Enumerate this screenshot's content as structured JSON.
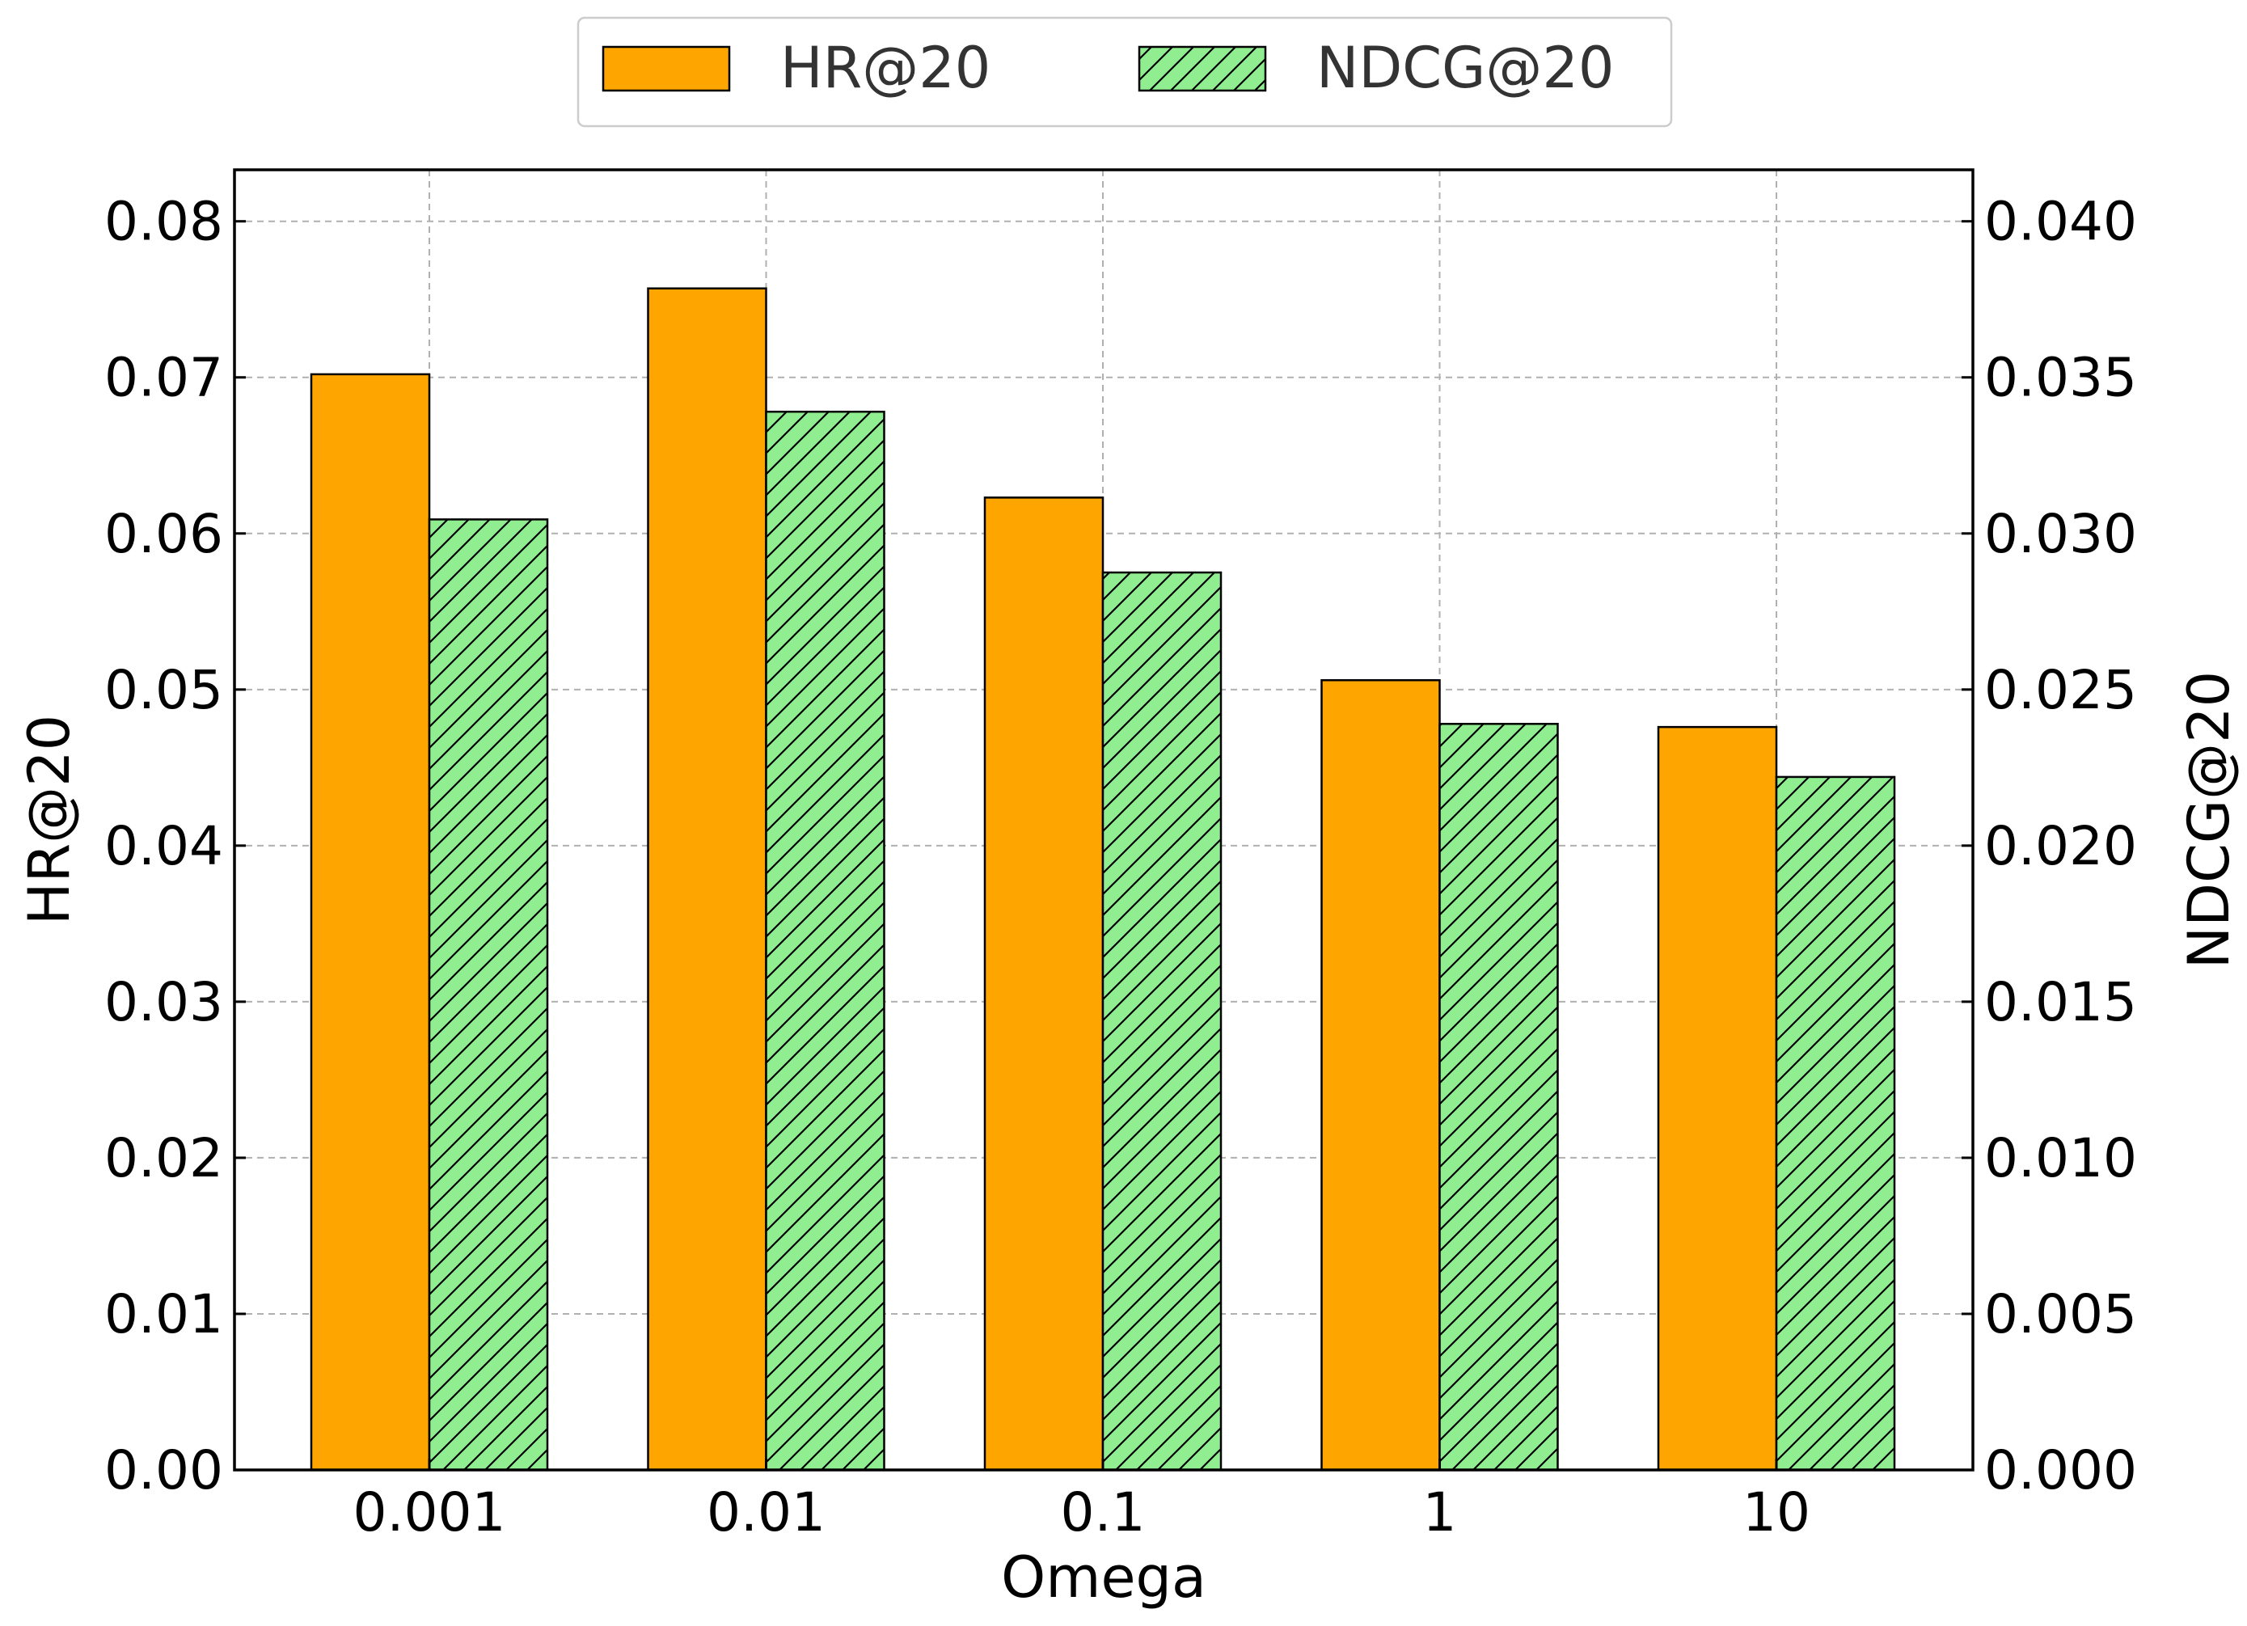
{
  "chart_data": {
    "type": "bar",
    "categories": [
      "0.001",
      "0.01",
      "0.1",
      "1",
      "10"
    ],
    "xlabel": "Omega",
    "ylabel_left": "HR@20",
    "ylabel_right": "NDCG@20",
    "ylim_left": [
      0,
      0.0833
    ],
    "ylim_right": [
      0,
      0.04165
    ],
    "yticks_left": [
      "0.00",
      "0.01",
      "0.02",
      "0.03",
      "0.04",
      "0.05",
      "0.06",
      "0.07",
      "0.08"
    ],
    "yticks_right": [
      "0.000",
      "0.005",
      "0.010",
      "0.015",
      "0.020",
      "0.025",
      "0.030",
      "0.035",
      "0.040"
    ],
    "grid": true,
    "legend_position": "top-center",
    "series": [
      {
        "name": "HR@20",
        "axis": "left",
        "color": "#FFA500",
        "hatch": "none",
        "values": [
          0.0702,
          0.0757,
          0.0623,
          0.0506,
          0.0476
        ]
      },
      {
        "name": "NDCG@20",
        "axis": "right",
        "color": "#90EE90",
        "hatch": "diagonal",
        "values": [
          0.03045,
          0.0339,
          0.02875,
          0.0239,
          0.0222
        ]
      }
    ]
  }
}
